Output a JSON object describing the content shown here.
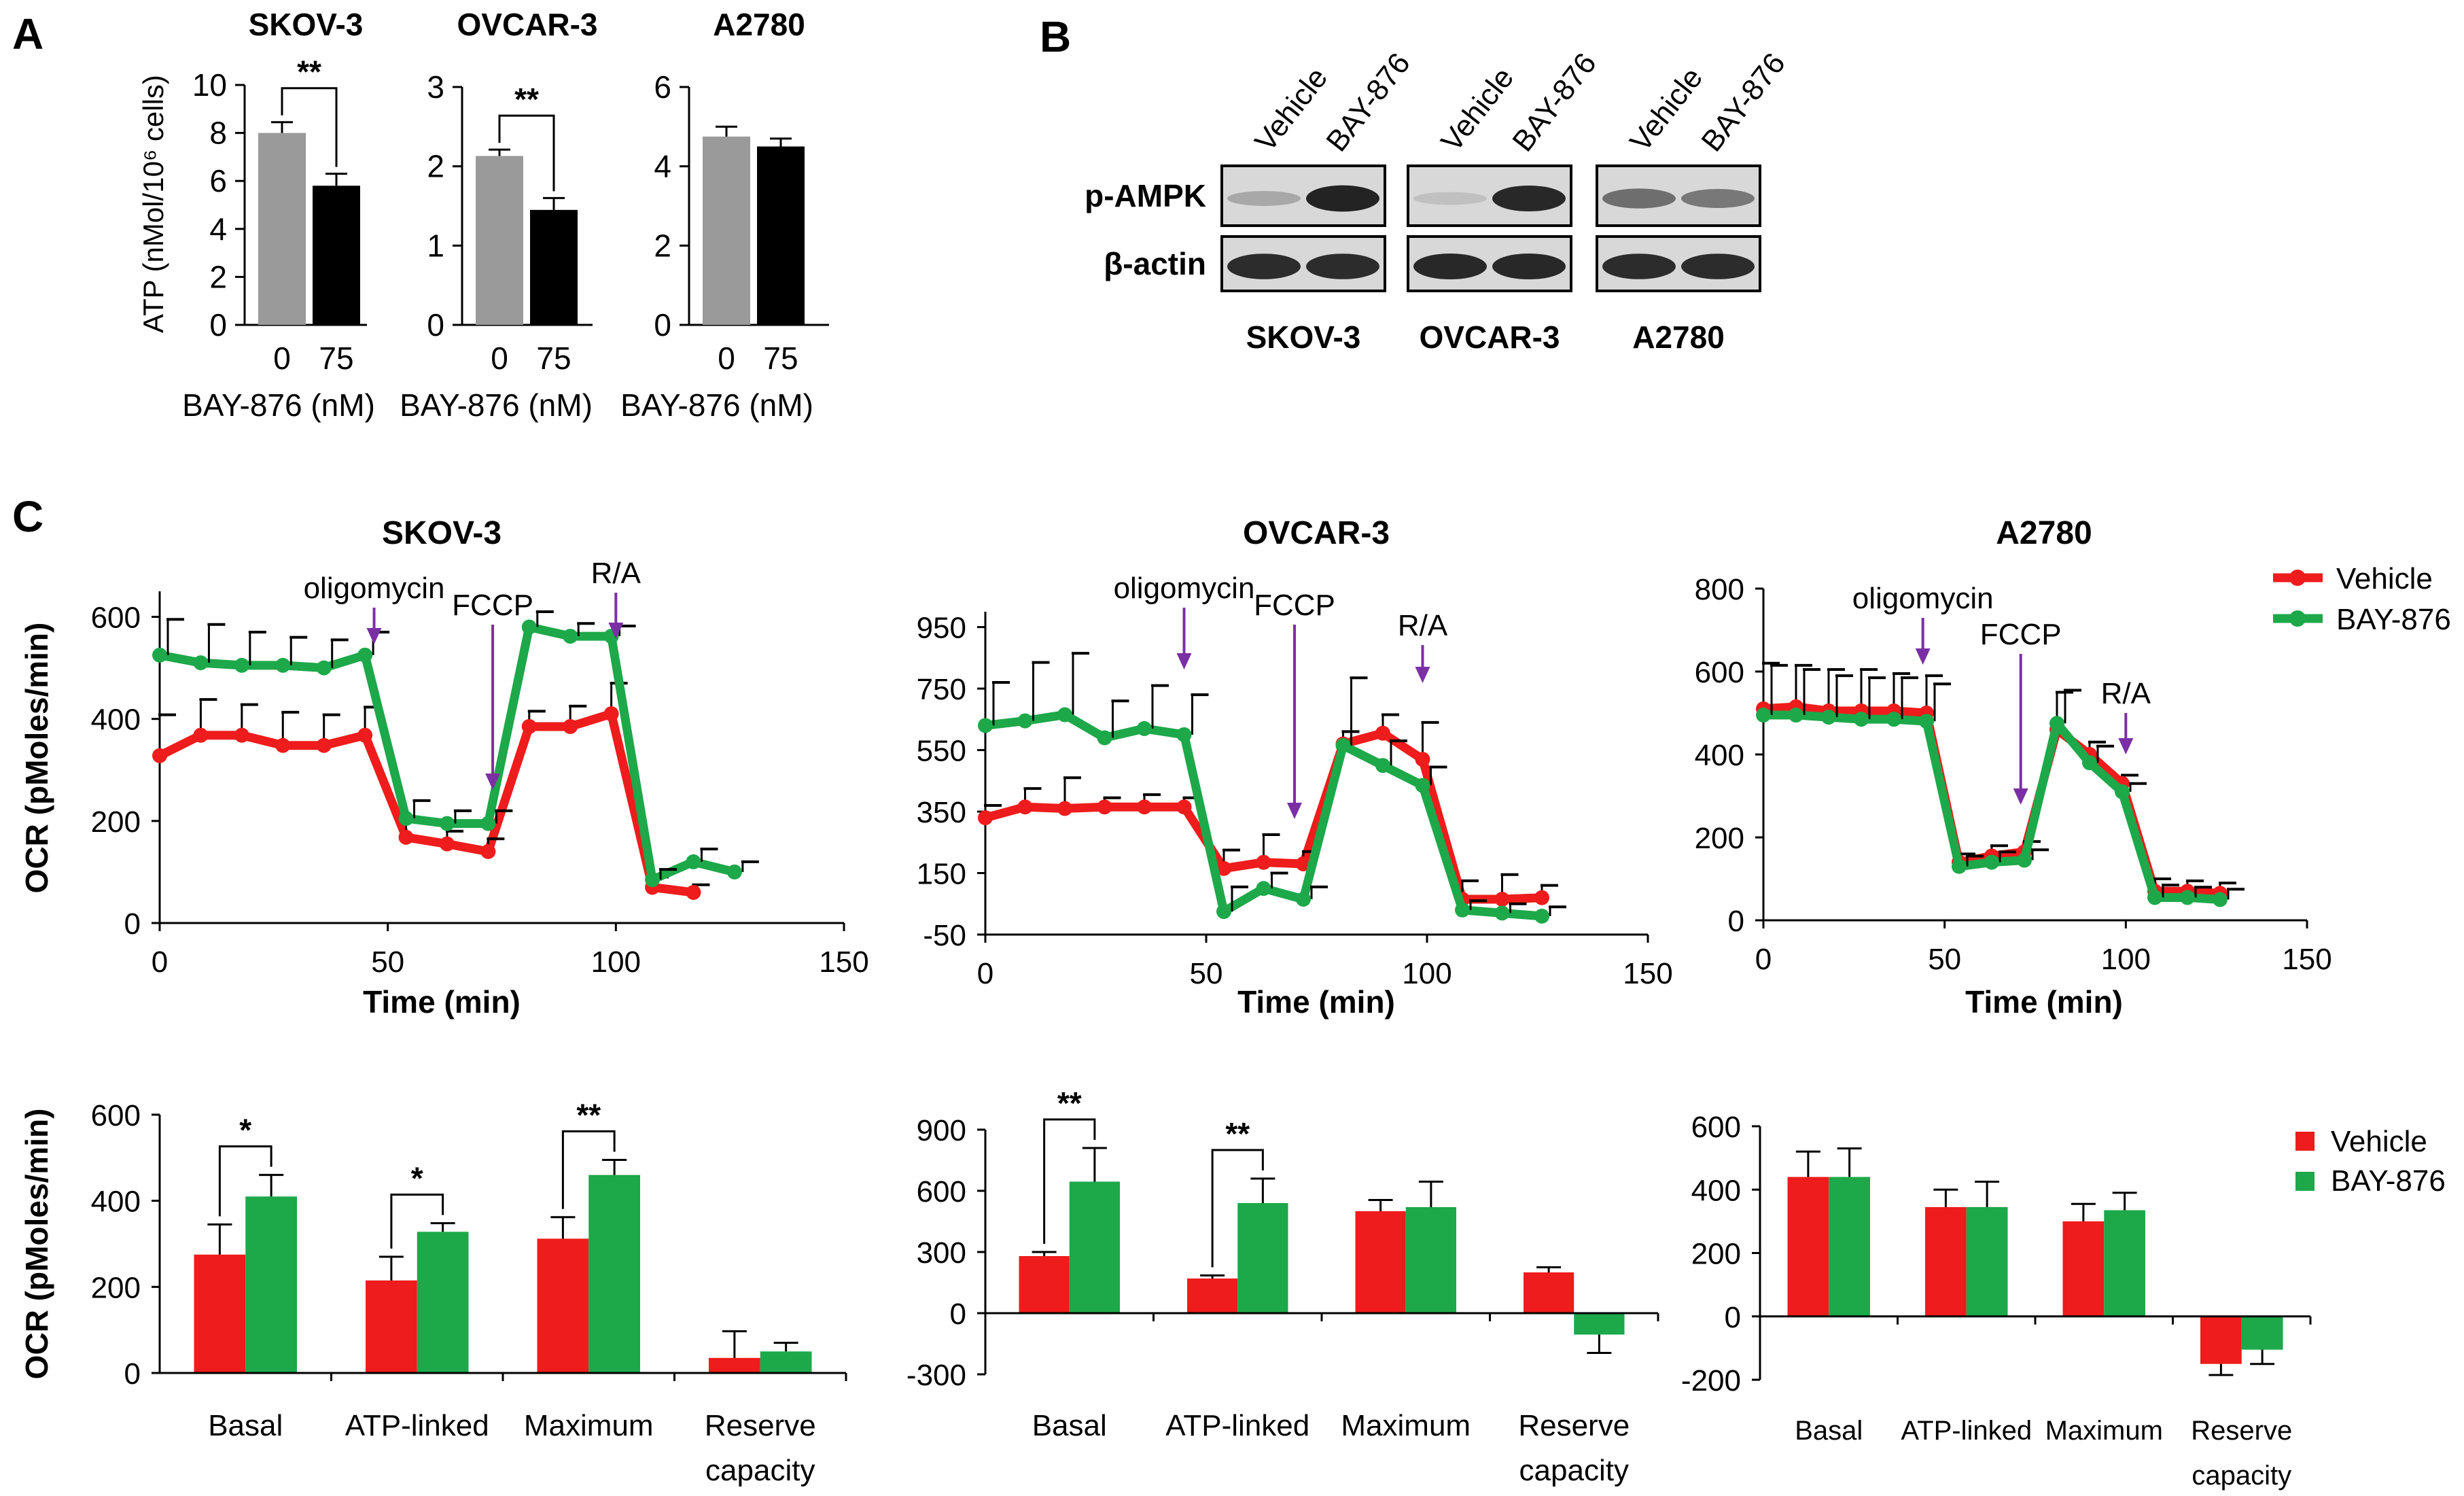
{
  "panels": {
    "A": "A",
    "B": "B",
    "C": "C"
  },
  "colors": {
    "vehicle": "#ee1c1c",
    "bay": "#1da84a",
    "grey": "#9a9a9a",
    "black": "#000000",
    "arrow": "#7b2fa4"
  },
  "chart_data": [
    {
      "id": "atp-skov3",
      "type": "bar",
      "title": "SKOV-3",
      "ylabel": "ATP (nMol/10⁶ cells)",
      "xlabel": "BAY-876 (nM)",
      "categories": [
        "0",
        "75"
      ],
      "values": [
        8.0,
        5.8
      ],
      "errors": [
        0.45,
        0.5
      ],
      "ylim": [
        0,
        10
      ],
      "yticks": [
        "0",
        "2",
        "4",
        "6",
        "8",
        "10"
      ],
      "significance": "**"
    },
    {
      "id": "atp-ovcar3",
      "type": "bar",
      "title": "OVCAR-3",
      "xlabel": "BAY-876 (nM)",
      "categories": [
        "0",
        "75"
      ],
      "values": [
        2.13,
        1.45
      ],
      "errors": [
        0.08,
        0.15
      ],
      "ylim": [
        0,
        3
      ],
      "yticks": [
        "0",
        "1",
        "2",
        "3"
      ],
      "significance": "**"
    },
    {
      "id": "atp-a2780",
      "type": "bar",
      "title": "A2780",
      "xlabel": "BAY-876 (nM)",
      "categories": [
        "0",
        "75"
      ],
      "values": [
        4.75,
        4.5
      ],
      "errors": [
        0.25,
        0.2
      ],
      "ylim": [
        0,
        6
      ],
      "yticks": [
        "0",
        "2",
        "4",
        "6"
      ],
      "significance": ""
    },
    {
      "id": "ocr-skov3",
      "type": "line",
      "title": "SKOV-3",
      "ylabel": "OCR (pMoles/min)",
      "xlabel": "Time (min)",
      "x": [
        0,
        9,
        18,
        27,
        36,
        45,
        54,
        63,
        72,
        81,
        90,
        99,
        108,
        117,
        126
      ],
      "series": [
        {
          "name": "Vehicle",
          "values": [
            328,
            368,
            368,
            348,
            348,
            368,
            168,
            155,
            140,
            385,
            385,
            410,
            70,
            60,
            null
          ],
          "errors": [
            80,
            70,
            60,
            65,
            60,
            55,
            30,
            25,
            25,
            30,
            40,
            60,
            20,
            15,
            null
          ]
        },
        {
          "name": "BAY-876",
          "values": [
            525,
            510,
            505,
            505,
            500,
            525,
            205,
            195,
            195,
            580,
            562,
            562,
            85,
            120,
            100
          ],
          "errors": [
            70,
            75,
            65,
            55,
            55,
            45,
            35,
            25,
            25,
            30,
            25,
            20,
            20,
            25,
            20
          ]
        }
      ],
      "xlim": [
        0,
        150
      ],
      "ylim": [
        0,
        650
      ],
      "xticks": [
        "0",
        "50",
        "100",
        "150"
      ],
      "yticks": [
        "0",
        "200",
        "400",
        "600"
      ],
      "injections": [
        {
          "label": "oligomycin",
          "x": 47
        },
        {
          "label": "FCCP",
          "x": 73
        },
        {
          "label": "R/A",
          "x": 100
        }
      ]
    },
    {
      "id": "ocr-ovcar3",
      "type": "line",
      "title": "OVCAR-3",
      "xlabel": "Time (min)",
      "x": [
        0,
        9,
        18,
        27,
        36,
        45,
        54,
        63,
        72,
        81,
        90,
        99,
        108,
        117,
        126
      ],
      "series": [
        {
          "name": "Vehicle",
          "values": [
            330,
            365,
            360,
            365,
            365,
            365,
            165,
            185,
            180,
            570,
            605,
            520,
            65,
            65,
            70
          ],
          "errors": [
            40,
            60,
            100,
            30,
            40,
            30,
            60,
            90,
            40,
            40,
            60,
            120,
            60,
            80,
            40
          ]
        },
        {
          "name": "BAY-876",
          "values": [
            630,
            645,
            665,
            590,
            620,
            600,
            25,
            100,
            65,
            565,
            500,
            435,
            30,
            20,
            10
          ],
          "errors": [
            140,
            190,
            200,
            120,
            140,
            130,
            80,
            50,
            40,
            220,
            80,
            60,
            30,
            30,
            30
          ]
        }
      ],
      "xlim": [
        0,
        150
      ],
      "ylim": [
        -50,
        1000
      ],
      "xticks": [
        "0",
        "50",
        "100",
        "150"
      ],
      "yticks": [
        "-50",
        "150",
        "350",
        "550",
        "750",
        "950"
      ],
      "injections": [
        {
          "label": "oligomycin",
          "x": 45
        },
        {
          "label": "FCCP",
          "x": 70
        },
        {
          "label": "R/A",
          "x": 99
        }
      ]
    },
    {
      "id": "ocr-a2780",
      "type": "line",
      "title": "A2780",
      "xlabel": "Time (min)",
      "x": [
        0,
        9,
        18,
        27,
        36,
        45,
        54,
        63,
        72,
        81,
        90,
        99,
        108,
        117,
        126
      ],
      "series": [
        {
          "name": "Vehicle",
          "values": [
            510,
            515,
            505,
            505,
            505,
            500,
            140,
            155,
            165,
            460,
            400,
            330,
            70,
            70,
            65
          ],
          "errors": [
            110,
            100,
            100,
            100,
            90,
            90,
            20,
            25,
            25,
            90,
            30,
            20,
            30,
            25,
            25
          ]
        },
        {
          "name": "BAY-876",
          "values": [
            495,
            495,
            490,
            485,
            485,
            480,
            130,
            140,
            145,
            475,
            380,
            310,
            55,
            55,
            50
          ],
          "errors": [
            120,
            110,
            100,
            100,
            100,
            90,
            25,
            25,
            25,
            80,
            40,
            20,
            30,
            25,
            25
          ]
        }
      ],
      "xlim": [
        0,
        150
      ],
      "ylim": [
        0,
        800
      ],
      "xticks": [
        "0",
        "50",
        "100",
        "150"
      ],
      "yticks": [
        "0",
        "200",
        "400",
        "600",
        "800"
      ],
      "injections": [
        {
          "label": "oligomycin",
          "x": 44
        },
        {
          "label": "FCCP",
          "x": 71
        },
        {
          "label": "R/A",
          "x": 100
        }
      ]
    },
    {
      "id": "params-skov3",
      "type": "bar",
      "ylabel": "OCR (pMoles/min)",
      "categories": [
        "Basal",
        "ATP-linked",
        "Maximum",
        "Reserve capacity"
      ],
      "series": [
        {
          "name": "Vehicle",
          "values": [
            275,
            215,
            312,
            35
          ],
          "errors": [
            70,
            55,
            50,
            62
          ]
        },
        {
          "name": "BAY-876",
          "values": [
            410,
            328,
            460,
            50
          ],
          "errors": [
            50,
            20,
            35,
            20
          ]
        }
      ],
      "ylim": [
        0,
        600
      ],
      "yticks": [
        "0",
        "200",
        "400",
        "600"
      ],
      "significance": [
        {
          "category": 0,
          "label": "*"
        },
        {
          "category": 1,
          "label": "*"
        },
        {
          "category": 2,
          "label": "**"
        }
      ]
    },
    {
      "id": "params-ovcar3",
      "type": "bar",
      "categories": [
        "Basal",
        "ATP-linked",
        "Maximum",
        "Reserve capacity"
      ],
      "series": [
        {
          "name": "Vehicle",
          "values": [
            280,
            170,
            500,
            200
          ],
          "errors": [
            20,
            15,
            55,
            25
          ]
        },
        {
          "name": "BAY-876",
          "values": [
            645,
            540,
            520,
            -105
          ],
          "errors": [
            165,
            120,
            125,
            90
          ]
        }
      ],
      "ylim": [
        -300,
        900
      ],
      "yticks": [
        "-300",
        "0",
        "300",
        "600",
        "900"
      ],
      "significance": [
        {
          "category": 0,
          "label": "**"
        },
        {
          "category": 1,
          "label": "**"
        }
      ]
    },
    {
      "id": "params-a2780",
      "type": "bar",
      "categories": [
        "Basal",
        "ATP-linked",
        "Maximum",
        "Reserve capacity"
      ],
      "series": [
        {
          "name": "Vehicle",
          "values": [
            440,
            345,
            300,
            -150
          ],
          "errors": [
            80,
            55,
            55,
            35
          ]
        },
        {
          "name": "BAY-876",
          "values": [
            440,
            345,
            335,
            -105
          ],
          "errors": [
            90,
            80,
            55,
            45
          ]
        }
      ],
      "ylim": [
        -200,
        600
      ],
      "yticks": [
        "-200",
        "0",
        "200",
        "400",
        "600"
      ],
      "significance": []
    }
  ],
  "blot": {
    "lanes": [
      "Vehicle",
      "BAY-876",
      "Vehicle",
      "BAY-876",
      "Vehicle",
      "BAY-876"
    ],
    "rows": [
      "p-AMPK",
      "β-actin"
    ],
    "cell_lines": [
      "SKOV-3",
      "OVCAR-3",
      "A2780"
    ],
    "p_ampk_intensity": [
      0.25,
      0.95,
      0.12,
      0.92,
      0.55,
      0.5
    ],
    "actin_intensity": [
      0.9,
      0.9,
      0.92,
      0.92,
      0.9,
      0.9
    ]
  },
  "legend": {
    "vehicle": "Vehicle",
    "bay": "BAY-876"
  }
}
